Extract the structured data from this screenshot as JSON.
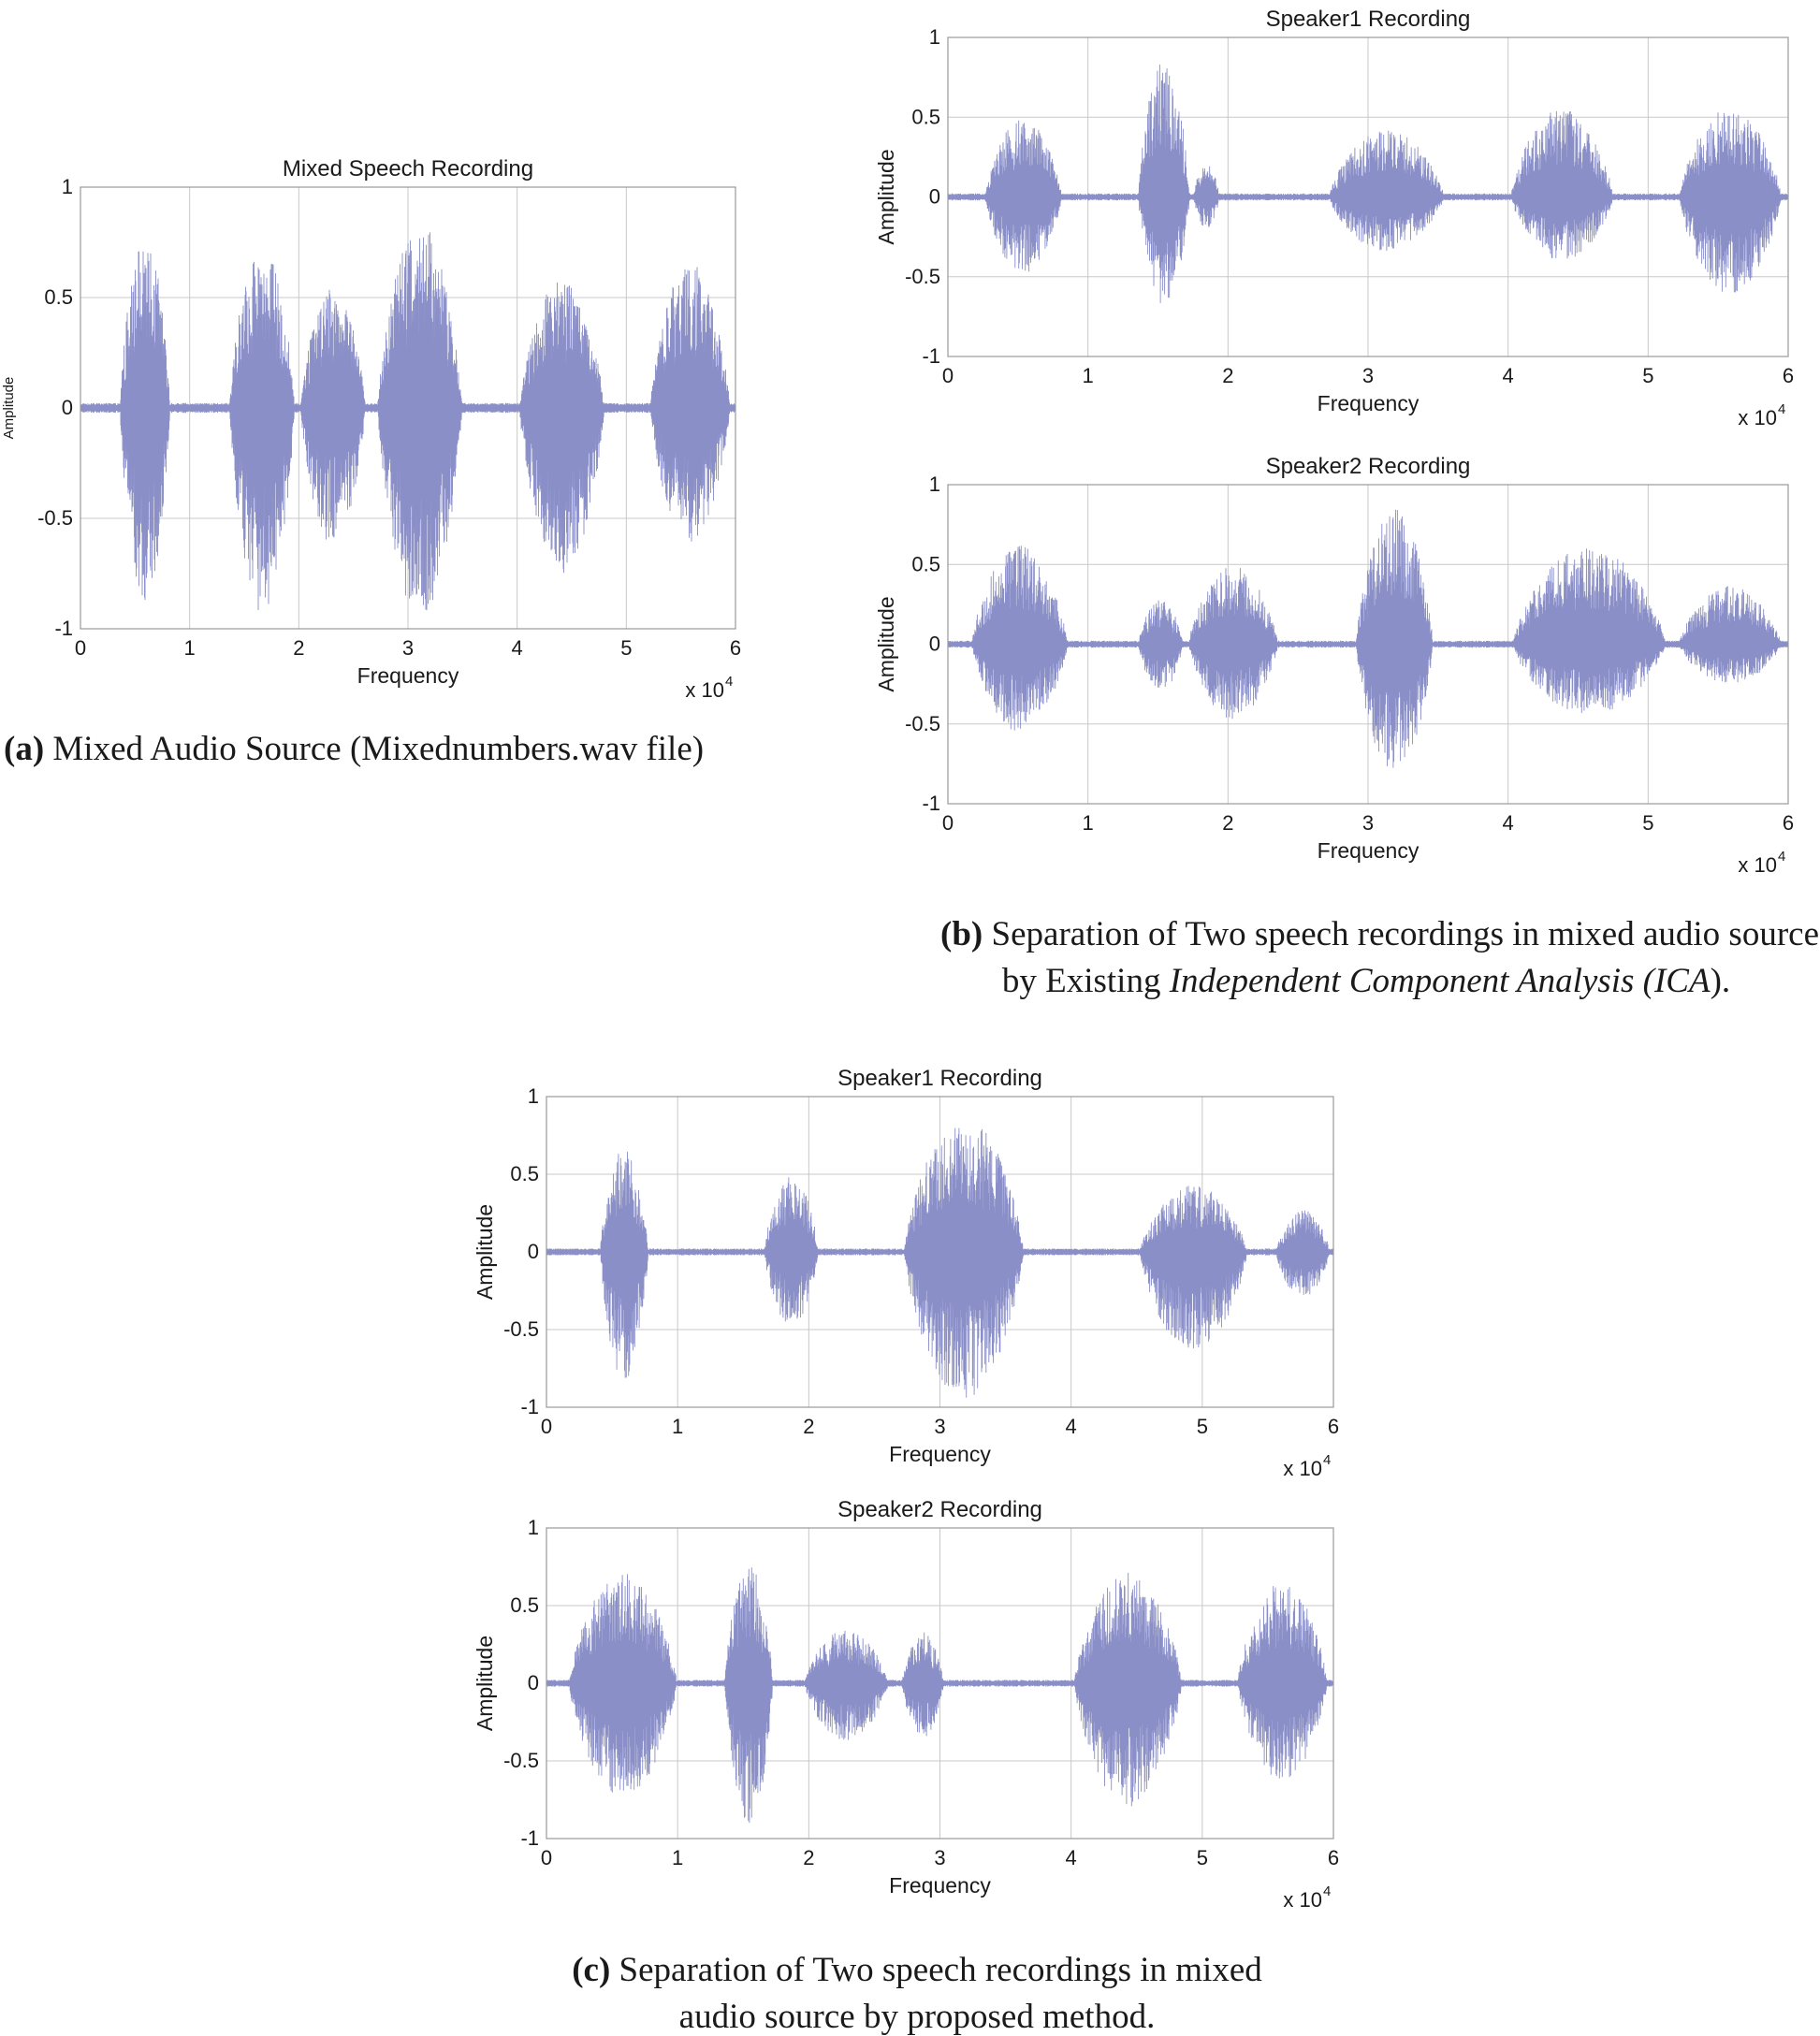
{
  "wave_color": "#8a8fc8",
  "captions": {
    "a": {
      "label": "(a)",
      "text": " Mixed Audio Source (Mixednumbers.wav file)"
    },
    "b": {
      "label": "(b)",
      "line1": " Separation of Two speech recordings in mixed audio source",
      "line2_pre": "by Existing ",
      "line2_italic": "Independent Component Analysis (ICA",
      "line2_post": ")."
    },
    "c": {
      "label": "(c)",
      "line1": " Separation of Two speech recordings in mixed",
      "line2": "audio source by proposed method."
    }
  },
  "chart_data": [
    {
      "id": "mixed",
      "type": "line",
      "title": "Mixed Speech Recording",
      "xlabel": "Frequency",
      "ylabel": "Amplitude",
      "x_multiplier": "x 10",
      "x_multiplier_exp": "4",
      "xlim": [
        0,
        60000
      ],
      "ylim": [
        -1,
        1
      ],
      "xticks": [
        "0",
        "1",
        "2",
        "3",
        "4",
        "5",
        "6"
      ],
      "yticks": [
        "1",
        "0.5",
        "0",
        "-0.5",
        "-1"
      ],
      "grid": true,
      "bursts": [
        {
          "start": 3500,
          "end": 8500,
          "pos": 0.78,
          "neg": -0.87
        },
        {
          "start": 13500,
          "end": 20000,
          "pos": 0.75,
          "neg": -0.93
        },
        {
          "start": 20000,
          "end": 26500,
          "pos": 0.55,
          "neg": -0.62
        },
        {
          "start": 27000,
          "end": 35500,
          "pos": 0.85,
          "neg": -0.95
        },
        {
          "start": 40000,
          "end": 48500,
          "pos": 0.58,
          "neg": -0.75
        },
        {
          "start": 52000,
          "end": 60000,
          "pos": 0.66,
          "neg": -0.62
        }
      ]
    },
    {
      "id": "ica_s1",
      "type": "line",
      "title": "Speaker1 Recording",
      "xlabel": "Frequency",
      "ylabel": "Amplitude",
      "x_multiplier": "x 10",
      "x_multiplier_exp": "4",
      "xlim": [
        0,
        60000
      ],
      "ylim": [
        -1,
        1
      ],
      "xticks": [
        "0",
        "1",
        "2",
        "3",
        "4",
        "5",
        "6"
      ],
      "yticks": [
        "1",
        "0.5",
        "0",
        "-0.5",
        "-1"
      ],
      "grid": true,
      "bursts": [
        {
          "start": 2500,
          "end": 8500,
          "pos": 0.5,
          "neg": -0.48
        },
        {
          "start": 13500,
          "end": 17500,
          "pos": 0.86,
          "neg": -0.68
        },
        {
          "start": 17500,
          "end": 19500,
          "pos": 0.22,
          "neg": -0.2
        },
        {
          "start": 27000,
          "end": 36000,
          "pos": 0.43,
          "neg": -0.35
        },
        {
          "start": 40000,
          "end": 48000,
          "pos": 0.57,
          "neg": -0.4
        },
        {
          "start": 52000,
          "end": 60000,
          "pos": 0.56,
          "neg": -0.62
        }
      ]
    },
    {
      "id": "ica_s2",
      "type": "line",
      "title": "Speaker2 Recording",
      "xlabel": "Frequency",
      "ylabel": "Amplitude",
      "x_multiplier": "x 10",
      "x_multiplier_exp": "4",
      "xlim": [
        0,
        60000
      ],
      "ylim": [
        -1,
        1
      ],
      "xticks": [
        "0",
        "1",
        "2",
        "3",
        "4",
        "5",
        "6"
      ],
      "yticks": [
        "1",
        "0.5",
        "0",
        "-0.5",
        "-1"
      ],
      "grid": true,
      "bursts": [
        {
          "start": 1500,
          "end": 9000,
          "pos": 0.62,
          "neg": -0.55
        },
        {
          "start": 13500,
          "end": 17000,
          "pos": 0.28,
          "neg": -0.3
        },
        {
          "start": 17000,
          "end": 24000,
          "pos": 0.5,
          "neg": -0.47
        },
        {
          "start": 29000,
          "end": 35000,
          "pos": 0.85,
          "neg": -0.82
        },
        {
          "start": 40000,
          "end": 52000,
          "pos": 0.62,
          "neg": -0.45
        },
        {
          "start": 52000,
          "end": 60000,
          "pos": 0.37,
          "neg": -0.25
        }
      ]
    },
    {
      "id": "prop_s1",
      "type": "line",
      "title": "Speaker1 Recording",
      "xlabel": "Frequency",
      "ylabel": "Amplitude",
      "x_multiplier": "x 10",
      "x_multiplier_exp": "4",
      "xlim": [
        0,
        60000
      ],
      "ylim": [
        -1,
        1
      ],
      "xticks": [
        "0",
        "1",
        "2",
        "3",
        "4",
        "5",
        "6"
      ],
      "yticks": [
        "1",
        "0.5",
        "0",
        "-0.5",
        "-1"
      ],
      "grid": true,
      "bursts": [
        {
          "start": 4000,
          "end": 8000,
          "pos": 0.68,
          "neg": -0.83
        },
        {
          "start": 16500,
          "end": 21000,
          "pos": 0.5,
          "neg": -0.48
        },
        {
          "start": 27000,
          "end": 37000,
          "pos": 0.88,
          "neg": -0.95
        },
        {
          "start": 45000,
          "end": 54000,
          "pos": 0.43,
          "neg": -0.65
        },
        {
          "start": 55500,
          "end": 60000,
          "pos": 0.27,
          "neg": -0.3
        }
      ]
    },
    {
      "id": "prop_s2",
      "type": "line",
      "title": "Speaker2 Recording",
      "xlabel": "Frequency",
      "ylabel": "Amplitude",
      "x_multiplier": "x 10",
      "x_multiplier_exp": "4",
      "xlim": [
        0,
        60000
      ],
      "ylim": [
        -1,
        1
      ],
      "xticks": [
        "0",
        "1",
        "2",
        "3",
        "4",
        "5",
        "6"
      ],
      "yticks": [
        "1",
        "0.5",
        "0",
        "-0.5",
        "-1"
      ],
      "grid": true,
      "bursts": [
        {
          "start": 1500,
          "end": 10500,
          "pos": 0.72,
          "neg": -0.75
        },
        {
          "start": 13500,
          "end": 17500,
          "pos": 0.77,
          "neg": -0.91
        },
        {
          "start": 19500,
          "end": 26500,
          "pos": 0.35,
          "neg": -0.38
        },
        {
          "start": 27000,
          "end": 30500,
          "pos": 0.33,
          "neg": -0.35
        },
        {
          "start": 40000,
          "end": 49000,
          "pos": 0.72,
          "neg": -0.8
        },
        {
          "start": 52500,
          "end": 60000,
          "pos": 0.65,
          "neg": -0.63
        }
      ]
    }
  ]
}
